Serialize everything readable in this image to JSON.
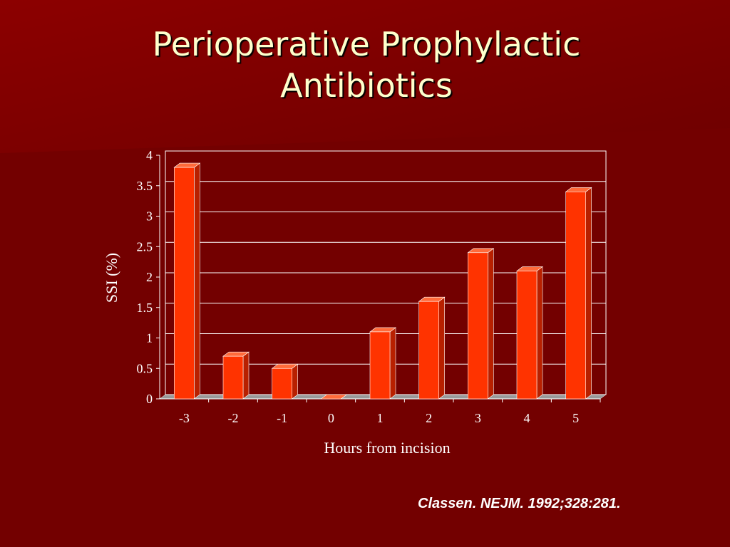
{
  "chart_data": {
    "type": "bar",
    "title": "Perioperative Prophylactic Antibiotics",
    "xlabel": "Hours from incision",
    "ylabel": "SSI (%)",
    "note": "Classen. NEJM. 1992;328:281.",
    "categories": [
      "-3",
      "-2",
      "-1",
      "0",
      "1",
      "2",
      "3",
      "4",
      "5"
    ],
    "values": [
      3.8,
      0.7,
      0.5,
      0,
      1.1,
      1.6,
      2.4,
      2.1,
      3.4
    ],
    "color": "#ff3300",
    "ylim": [
      0,
      4
    ],
    "yticks": [
      0,
      0.5,
      1,
      1.5,
      2,
      2.5,
      3,
      3.5,
      4
    ],
    "grid": true
  }
}
